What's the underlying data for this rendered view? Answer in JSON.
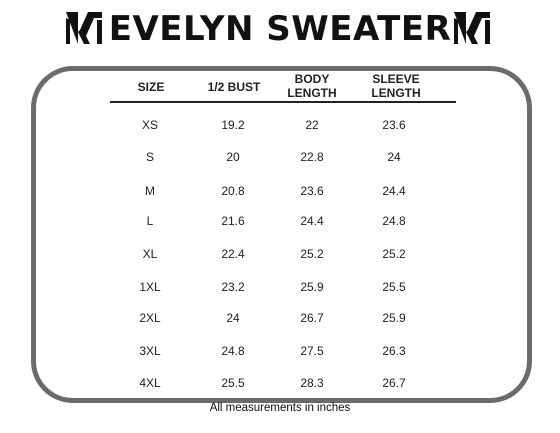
{
  "title": "EVELYN SWEATER",
  "logo_icon": "stylized-m-logo",
  "table": {
    "headers": [
      [
        "SIZE"
      ],
      [
        "1/2 BUST"
      ],
      [
        "BODY",
        "LENGTH"
      ],
      [
        "SLEEVE",
        "LENGTH"
      ]
    ],
    "rows": [
      [
        "XS",
        "19.2",
        "22",
        "23.6"
      ],
      [
        "S",
        "20",
        "22.8",
        "24"
      ],
      [
        "M",
        "20.8",
        "23.6",
        "24.4"
      ],
      [
        "L",
        "21.6",
        "24.4",
        "24.8"
      ],
      [
        "XL",
        "22.4",
        "25.2",
        "25.2"
      ],
      [
        "1XL",
        "23.2",
        "25.9",
        "25.5"
      ],
      [
        "2XL",
        "24",
        "26.7",
        "25.9"
      ],
      [
        "3XL",
        "24.8",
        "27.5",
        "26.3"
      ],
      [
        "4XL",
        "25.5",
        "28.3",
        "26.7"
      ]
    ]
  },
  "footer": "All measurements in inches",
  "colors": {
    "border": "#6b6b6b",
    "text": "#222222"
  }
}
